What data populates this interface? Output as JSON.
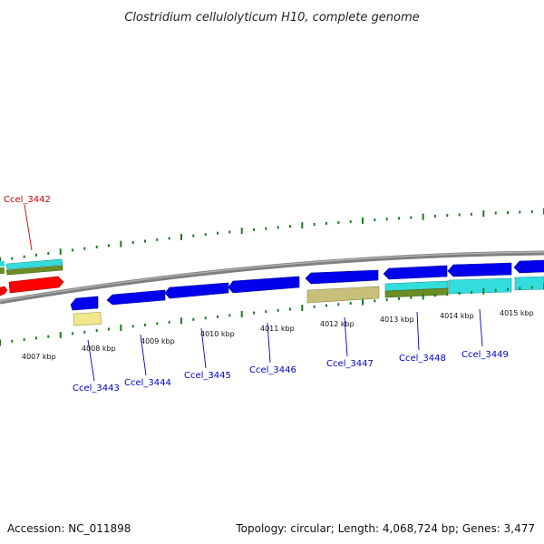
{
  "title": "Clostridium cellulolyticum H10, complete genome",
  "footer": {
    "accession": "Accession: NC_011898",
    "topology": "Topology: circular; Length: 4,068,724 bp; Genes: 3,477"
  },
  "colors": {
    "backbone": "#7f7f7f",
    "tick": "#1f7a1f",
    "forward_gene": "#ff0000",
    "reverse_gene": "#0000ee",
    "cds_cyan": "#33dddd",
    "cds_olive": "#6b8e23",
    "cds_khaki": "#c8c07a",
    "cds_paleyellow": "#f0e68c",
    "label_forward": "#cc0000",
    "label_reverse": "#0000cc"
  },
  "scale_labels": [
    "4007 kbp",
    "4008 kbp",
    "4009 kbp",
    "4010 kbp",
    "4011 kbp",
    "4012 kbp",
    "4013 kbp",
    "4014 kbp",
    "4015 kbp"
  ],
  "gene_labels": [
    {
      "name": "Ccel_3442",
      "strand": "forward"
    },
    {
      "name": "Ccel_3443",
      "strand": "reverse"
    },
    {
      "name": "Ccel_3444",
      "strand": "reverse"
    },
    {
      "name": "Ccel_3445",
      "strand": "reverse"
    },
    {
      "name": "Ccel_3446",
      "strand": "reverse"
    },
    {
      "name": "Ccel_3447",
      "strand": "reverse"
    },
    {
      "name": "Ccel_3448",
      "strand": "reverse"
    },
    {
      "name": "Ccel_3449",
      "strand": "reverse"
    }
  ]
}
